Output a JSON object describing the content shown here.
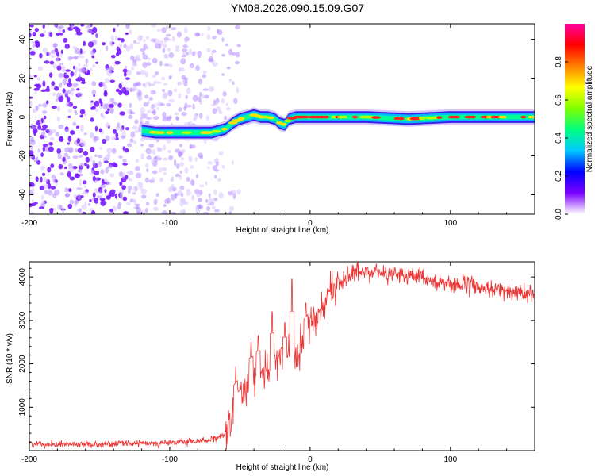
{
  "title": "YM08.2026.090.15.09.G07",
  "chart_data": [
    {
      "type": "heatmap",
      "title": "YM08.2026.090.15.09.G07",
      "xlabel": "Height of straight line (km)",
      "ylabel": "Frequency (Hz)",
      "xlim": [
        -200,
        160
      ],
      "ylim": [
        -50,
        48
      ],
      "xticks": [
        -200,
        -100,
        0,
        100
      ],
      "xtick_labels": [
        "-200",
        "-100",
        "0",
        "100"
      ],
      "yticks": [
        -40,
        -20,
        0,
        20,
        40
      ],
      "ytick_labels": [
        "-40",
        "-20",
        "0",
        "20",
        "40"
      ],
      "noise_region_x": [
        -200,
        -65
      ],
      "signal_band": {
        "x": [
          -120,
          -110,
          -100,
          -90,
          -80,
          -70,
          -65,
          -60,
          -55,
          -50,
          -45,
          -40,
          -35,
          -30,
          -25,
          -22,
          -18,
          -15,
          -10,
          0,
          20,
          40,
          70,
          100,
          130,
          160
        ],
        "freq": [
          -7,
          -8,
          -8,
          -8,
          -8,
          -8,
          -7,
          -6,
          -3,
          -1,
          0,
          1,
          0,
          0,
          -1,
          -3,
          -4,
          -1,
          0,
          0,
          0,
          0,
          -1,
          0,
          0,
          0
        ]
      },
      "colorbar": {
        "label": "Normalized spectral amplitude",
        "range": [
          0,
          1
        ],
        "ticks": [
          0,
          0.2,
          0.4,
          0.6,
          0.8
        ],
        "tick_labels": [
          "0.0",
          "0.2",
          "0.4",
          "0.6",
          "0.8"
        ],
        "colors": [
          "#ffffff",
          "#7b00ff",
          "#0000ff",
          "#00c8ff",
          "#00ff80",
          "#80ff00",
          "#ffff00",
          "#ff8000",
          "#ff0000",
          "#ff00a0"
        ]
      }
    },
    {
      "type": "line",
      "xlabel": "Height of straight line (km)",
      "ylabel": "SNR (10 * v/v)",
      "xlim": [
        -200,
        160
      ],
      "ylim": [
        0,
        4350
      ],
      "xticks": [
        -200,
        -100,
        0,
        100
      ],
      "xtick_labels": [
        "-200",
        "-100",
        "0",
        "100"
      ],
      "yticks": [
        1000,
        2000,
        3000,
        4000
      ],
      "ytick_labels": [
        "1000",
        "2000",
        "3000",
        "4000"
      ],
      "color": "#ee3333",
      "trend": {
        "x": [
          -200,
          -150,
          -100,
          -80,
          -65,
          -58,
          -52,
          -45,
          -40,
          -30,
          -20,
          -10,
          -5,
          0,
          10,
          20,
          30,
          40,
          60,
          80,
          100,
          120,
          140,
          160
        ],
        "y": [
          150,
          150,
          180,
          220,
          280,
          450,
          1100,
          1500,
          1700,
          1900,
          2100,
          2100,
          2400,
          2900,
          3500,
          3850,
          4050,
          4150,
          4080,
          3950,
          3850,
          3780,
          3650,
          3600
        ]
      },
      "spikes": [
        {
          "x": -53,
          "y": 1950
        },
        {
          "x": -50,
          "y": 1500
        },
        {
          "x": -42,
          "y": 2500
        },
        {
          "x": -37,
          "y": 2650
        },
        {
          "x": -27,
          "y": 3200
        },
        {
          "x": -18,
          "y": 2950
        },
        {
          "x": -13,
          "y": 3950
        },
        {
          "x": -3,
          "y": 3400
        }
      ]
    }
  ]
}
